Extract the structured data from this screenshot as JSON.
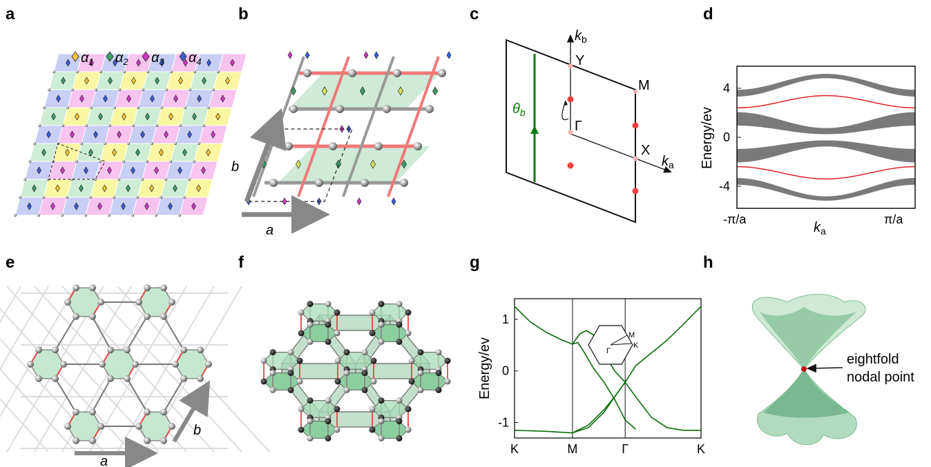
{
  "panels": {
    "a": {
      "label": "a",
      "legend": [
        {
          "symbol": "α",
          "sub": "1",
          "color": "#f3c437"
        },
        {
          "symbol": "α",
          "sub": "2",
          "color": "#3f9a63"
        },
        {
          "symbol": "α",
          "sub": "3",
          "color": "#c93bbd"
        },
        {
          "symbol": "α",
          "sub": "4",
          "color": "#3a5fd0"
        }
      ]
    },
    "b": {
      "label": "b",
      "axis_a": "a",
      "axis_b": "b"
    },
    "c": {
      "label": "c",
      "kb": "k",
      "kb_sub": "b",
      "ka": "k",
      "ka_sub": "a",
      "Y": "Y",
      "M": "M",
      "Gamma": "Γ",
      "X": "X",
      "theta": "θ",
      "theta_sub": "b"
    },
    "d": {
      "label": "d",
      "ylabel": "Energy/ev",
      "xlabel": "k",
      "xlabel_sub": "a"
    },
    "e": {
      "label": "e",
      "axis_a": "a",
      "axis_b": "b"
    },
    "f": {
      "label": "f"
    },
    "g": {
      "label": "g",
      "ylabel": "Energy/ev",
      "inset": {
        "M": "M",
        "K": "K",
        "Gamma": "Γ"
      }
    },
    "h": {
      "label": "h",
      "annotation_line1": "eightfold",
      "annotation_line2": "nodal point"
    }
  },
  "chart_data": [
    {
      "type": "line",
      "panel": "d",
      "xlabel": "ka",
      "ylabel": "Energy/ev",
      "xticks": [
        "-π/a",
        "π/a"
      ],
      "yticks": [
        "4",
        "0",
        "-4"
      ],
      "xlim": [
        -3.1416,
        3.1416
      ],
      "ylim": [
        -5.8,
        5.8
      ],
      "bands_gray": [
        {
          "center_edge": 3.6,
          "center_mid": 5.0,
          "width_edge": 0.55,
          "width_mid": 0.35
        },
        {
          "center_edge": 1.5,
          "center_mid": 0.5,
          "width_edge": 1.1,
          "width_mid": 0.5
        },
        {
          "center_edge": -1.5,
          "center_mid": -0.5,
          "width_edge": 1.1,
          "width_mid": 0.5
        },
        {
          "center_edge": -3.6,
          "center_mid": -5.0,
          "width_edge": 0.55,
          "width_mid": 0.35
        }
      ],
      "series": [
        {
          "color": "#e02020",
          "edge": 2.4,
          "mid": 3.4
        },
        {
          "color": "#e02020",
          "edge": -2.4,
          "mid": -3.4
        }
      ]
    },
    {
      "type": "line",
      "panel": "g",
      "ylabel": "Energy/ev",
      "xticks": [
        "K",
        "M",
        "Γ",
        "K"
      ],
      "yticks": [
        "1",
        "0",
        "-1"
      ],
      "ylim": [
        -1.3,
        1.4
      ],
      "series": [
        {
          "color": "#0a6b0a",
          "x": [
            0,
            0.15,
            0.3,
            0.45,
            0.55,
            0.6,
            0.65,
            0.75,
            0.85,
            0.95,
            1.05,
            1.15
          ],
          "y": [
            1.25,
            0.95,
            0.75,
            0.6,
            0.52,
            0.55,
            0.4,
            0.05,
            -0.22,
            -0.55,
            -0.95,
            -1.13
          ]
        },
        {
          "color": "#0a6b0a",
          "x": [
            0.55,
            0.62,
            0.68,
            0.75,
            0.85,
            0.95,
            1.05,
            1.15,
            1.3,
            1.45,
            1.6,
            1.77
          ],
          "y": [
            0.52,
            0.72,
            0.78,
            0.7,
            0.35,
            0.0,
            -0.22,
            0.1,
            0.35,
            0.6,
            0.9,
            1.25
          ]
        },
        {
          "color": "#0a6b0a",
          "x": [
            0,
            0.3,
            0.55,
            0.7,
            0.85,
            0.95,
            1.05,
            1.15,
            1.3,
            1.45,
            1.6,
            1.77
          ],
          "y": [
            -1.15,
            -1.17,
            -1.2,
            -1.1,
            -0.8,
            -0.5,
            -0.22,
            -0.5,
            -0.9,
            -1.1,
            -1.15,
            -1.15
          ]
        },
        {
          "color": "#0a6b0a",
          "x": [
            0.55,
            0.7,
            0.85,
            0.95,
            1.05
          ],
          "y": [
            -1.2,
            -1.05,
            -0.75,
            -0.5,
            -0.22
          ]
        }
      ]
    }
  ]
}
